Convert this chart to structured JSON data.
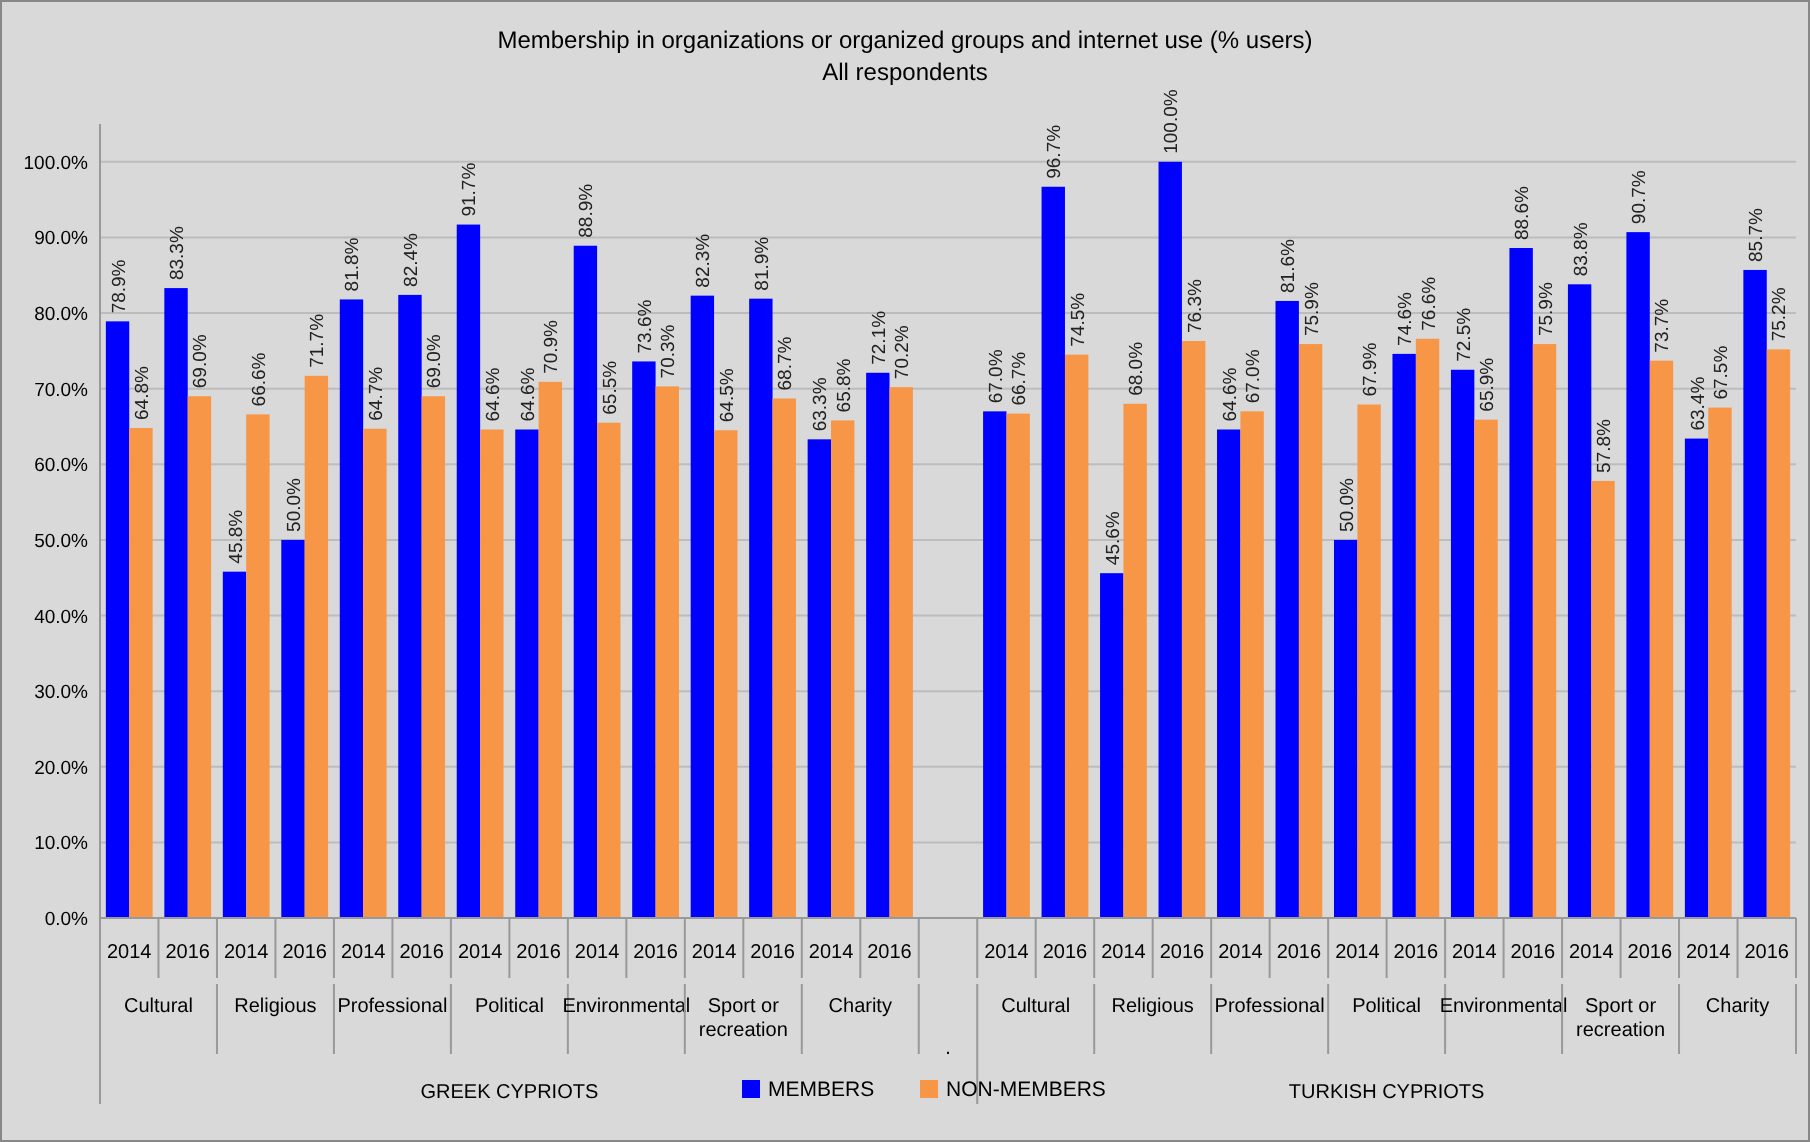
{
  "chart_data": {
    "type": "bar",
    "title": "Membership in organizations or organized groups and internet use (% users)",
    "subtitle": "All respondents",
    "categories": [
      "2014",
      "2016",
      "2014",
      "2016",
      "2014",
      "2016",
      "2014",
      "2016",
      "2014",
      "2016",
      "2014",
      "2016",
      "2014",
      "2016",
      null,
      "2014",
      "2016",
      "2014",
      "2016",
      "2014",
      "2016",
      "2014",
      "2016",
      "2014",
      "2016",
      "2014",
      "2016",
      "2014",
      "2016"
    ],
    "series": [
      {
        "name": "MEMBERS",
        "color": "#0000ff",
        "values": [
          78.9,
          83.3,
          45.8,
          50.0,
          81.8,
          82.4,
          91.7,
          64.6,
          88.9,
          73.6,
          82.3,
          81.9,
          63.3,
          72.1,
          null,
          67.0,
          96.7,
          45.6,
          100.0,
          64.6,
          81.6,
          50.0,
          74.6,
          72.5,
          88.6,
          83.8,
          90.7,
          63.4,
          85.7
        ],
        "value_labels": [
          "78.9%",
          "83.3%",
          "45.8%",
          "50.0%",
          "81.8%",
          "82.4%",
          "91.7%",
          "64.6%",
          "88.9%",
          "73.6%",
          "82.3%",
          "81.9%",
          "63.3%",
          "72.1%",
          null,
          "67.0%",
          "96.7%",
          "45.6%",
          "100.0%",
          "64.6%",
          "81.6%",
          "50.0%",
          "74.6%",
          "72.5%",
          "88.6%",
          "83.8%",
          "90.7%",
          "63.4%",
          "85.7%"
        ]
      },
      {
        "name": "NON-MEMBERS",
        "color": "#f79646",
        "values": [
          64.8,
          69.0,
          66.6,
          71.7,
          64.7,
          69.0,
          64.6,
          70.9,
          65.5,
          70.3,
          64.5,
          68.7,
          65.8,
          70.2,
          null,
          66.7,
          74.5,
          68.0,
          76.3,
          67.0,
          75.9,
          67.9,
          76.6,
          65.9,
          75.9,
          57.8,
          73.7,
          67.5,
          75.2
        ],
        "value_labels": [
          "64.8%",
          "69.0%",
          "66.6%",
          "71.7%",
          "64.7%",
          "69.0%",
          "64.6%",
          "70.9%",
          "65.5%",
          "70.3%",
          "64.5%",
          "68.7%",
          "65.8%",
          "70.2%",
          null,
          "66.7%",
          "74.5%",
          "68.0%",
          "76.3%",
          "67.0%",
          "75.9%",
          "67.9%",
          "76.6%",
          "65.9%",
          "75.9%",
          "57.8%",
          "73.7%",
          "67.5%",
          "75.2%"
        ]
      }
    ],
    "annotations": [
      "Cultural",
      "Religious",
      "Professional",
      "Political",
      "Environmental",
      "Sport or recreation",
      "Charity",
      "GREEK CYPRIOTS",
      ".",
      "Cultural",
      "Religious",
      "Professional",
      "Political",
      "Environmental",
      "Sport or recreation",
      "Charity",
      "TURKISH CYPRIOTS"
    ],
    "ylim": [
      0,
      105
    ],
    "yticks": [
      {
        "value": 0,
        "label": "0.0%"
      },
      {
        "value": 10,
        "label": "10.0%"
      },
      {
        "value": 20,
        "label": "20.0%"
      },
      {
        "value": 30,
        "label": "30.0%"
      },
      {
        "value": 40,
        "label": "40.0%"
      },
      {
        "value": 50,
        "label": "50.0%"
      },
      {
        "value": 60,
        "label": "60.0%"
      },
      {
        "value": 70,
        "label": "70.0%"
      },
      {
        "value": 80,
        "label": "80.0%"
      },
      {
        "value": 90,
        "label": "90.0%"
      },
      {
        "value": 100,
        "label": "100.0%"
      }
    ],
    "grid": "y",
    "legend": "bottom"
  }
}
